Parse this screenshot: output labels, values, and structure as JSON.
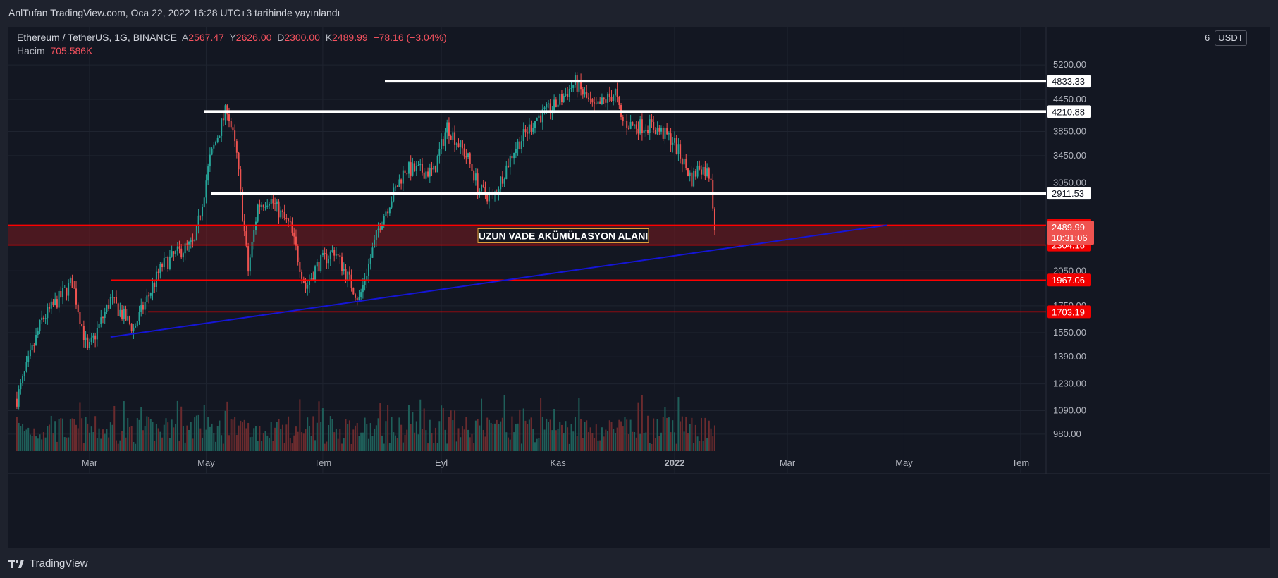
{
  "header": {
    "publish_text": "AnlTufan TradingView.com, Oca 22, 2022 16:28 UTC+3 tarihinde yayınlandı"
  },
  "legend": {
    "symbol": "Ethereum / TetherUS, 1G, BINANCE",
    "open_label": "A",
    "open": "2567.47",
    "high_label": "Y",
    "high": "2626.00",
    "low_label": "D",
    "low": "2300.00",
    "close_label": "K",
    "close": "2489.99",
    "change": "−78.16 (−3.04%)",
    "volume_label": "Hacim",
    "volume": "705.586K"
  },
  "axis": {
    "currency": "USDT",
    "top_partial_tick": "6"
  },
  "annotation": {
    "zone_label": "UZUN VADE AKÜMÜLASYON ALANI"
  },
  "footer": {
    "brand": "TradingView",
    "logo_icon": "tradingview-logo-icon"
  },
  "colors": {
    "background": "#131722",
    "up": "#26a69a",
    "down": "#ef5350",
    "support_line": "#ff0000",
    "trend_line": "#1515d6",
    "level_line": "#ffffff",
    "zone_fill": "#7a1a1f"
  },
  "chart_data": {
    "type": "candlestick",
    "symbol": "ETHUSDT",
    "scale": "log",
    "y_ticks": [
      980,
      1090,
      1230,
      1390,
      1550,
      1750,
      2050,
      3050,
      3450,
      3850,
      4450,
      5200
    ],
    "x_ticks": [
      "Mar",
      "May",
      "Tem",
      "Eyl",
      "Kas",
      "2022",
      "Mar",
      "May",
      "Tem"
    ],
    "horizontal_levels_white": [
      4833.33,
      4210.88,
      2911.53
    ],
    "horizontal_levels_red": [
      2520.89,
      2304.18,
      1967.06,
      1703.19
    ],
    "accumulation_zone": [
      2304.18,
      2520.89
    ],
    "current_price": {
      "value": "2489.99",
      "countdown": "10:31:06"
    },
    "trend_line": {
      "from": {
        "date": "2021-03-12",
        "price": 1520
      },
      "to": {
        "date": "2022-04-22",
        "price": 2520
      }
    },
    "anchor_series": [
      {
        "date": "2021-01-22",
        "price": 1150
      },
      {
        "date": "2021-02-04",
        "price": 1640
      },
      {
        "date": "2021-02-20",
        "price": 1950
      },
      {
        "date": "2021-02-28",
        "price": 1420
      },
      {
        "date": "2021-03-12",
        "price": 1800
      },
      {
        "date": "2021-03-24",
        "price": 1580
      },
      {
        "date": "2021-04-08",
        "price": 2100
      },
      {
        "date": "2021-04-18",
        "price": 2250
      },
      {
        "date": "2021-04-25",
        "price": 2320
      },
      {
        "date": "2021-05-03",
        "price": 3400
      },
      {
        "date": "2021-05-12",
        "price": 4300
      },
      {
        "date": "2021-05-17",
        "price": 3450
      },
      {
        "date": "2021-05-23",
        "price": 2050
      },
      {
        "date": "2021-05-28",
        "price": 2750
      },
      {
        "date": "2021-06-03",
        "price": 2850
      },
      {
        "date": "2021-06-14",
        "price": 2500
      },
      {
        "date": "2021-06-22",
        "price": 1900
      },
      {
        "date": "2021-06-28",
        "price": 2100
      },
      {
        "date": "2021-07-07",
        "price": 2250
      },
      {
        "date": "2021-07-20",
        "price": 1800
      },
      {
        "date": "2021-07-31",
        "price": 2550
      },
      {
        "date": "2021-08-13",
        "price": 3250
      },
      {
        "date": "2021-08-28",
        "price": 3200
      },
      {
        "date": "2021-09-04",
        "price": 3950
      },
      {
        "date": "2021-09-15",
        "price": 3400
      },
      {
        "date": "2021-09-21",
        "price": 2950
      },
      {
        "date": "2021-09-28",
        "price": 2850
      },
      {
        "date": "2021-10-09",
        "price": 3550
      },
      {
        "date": "2021-10-21",
        "price": 4100
      },
      {
        "date": "2021-10-30",
        "price": 4300
      },
      {
        "date": "2021-11-10",
        "price": 4800
      },
      {
        "date": "2021-11-20",
        "price": 4250
      },
      {
        "date": "2021-12-01",
        "price": 4600
      },
      {
        "date": "2021-12-04",
        "price": 4050
      },
      {
        "date": "2021-12-10",
        "price": 3950
      },
      {
        "date": "2021-12-20",
        "price": 3950
      },
      {
        "date": "2021-12-31",
        "price": 3700
      },
      {
        "date": "2022-01-10",
        "price": 3100
      },
      {
        "date": "2022-01-14",
        "price": 3300
      },
      {
        "date": "2022-01-20",
        "price": 3150
      },
      {
        "date": "2022-01-22",
        "price": 2490
      }
    ]
  }
}
